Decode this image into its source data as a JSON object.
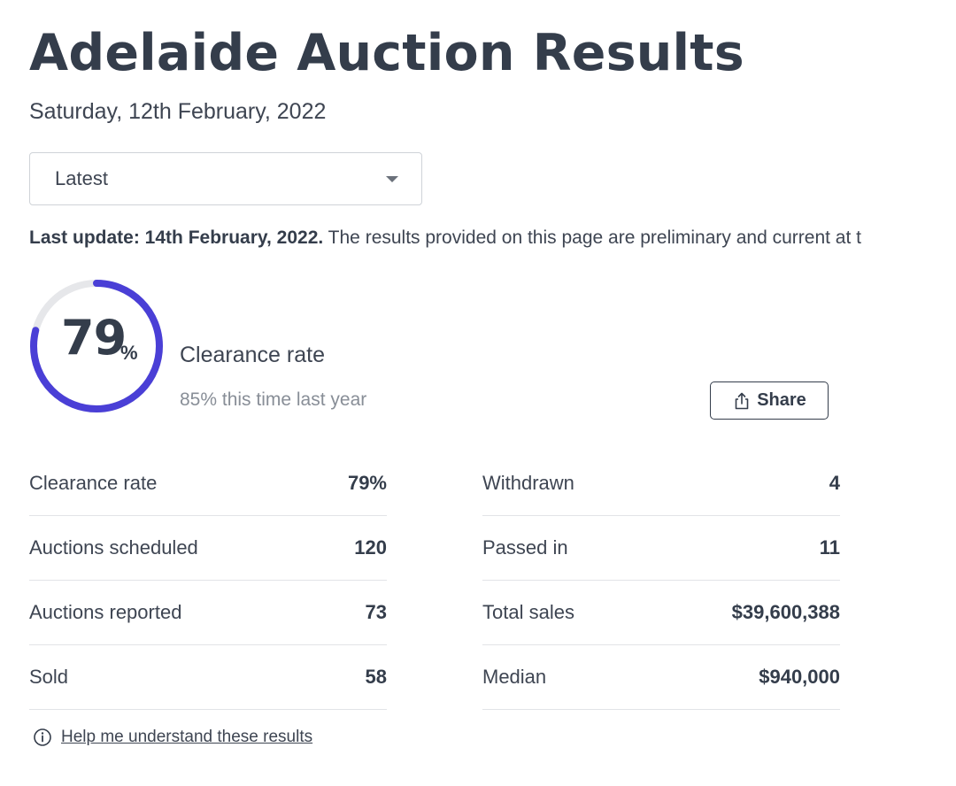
{
  "page": {
    "title": "Adelaide Auction Results",
    "date": "Saturday, 12th February, 2022"
  },
  "filter": {
    "selected": "Latest"
  },
  "update": {
    "label": "Last update: 14th February, 2022.",
    "text": " The results provided on this page are preliminary and current at t"
  },
  "summary": {
    "rate_value": "79",
    "rate_unit": "%",
    "rate_fraction": 0.79,
    "label": "Clearance rate",
    "comparison": "85% this time last year",
    "share_label": "Share"
  },
  "stats_left": [
    {
      "label": "Clearance rate",
      "value": "79%"
    },
    {
      "label": "Auctions scheduled",
      "value": "120"
    },
    {
      "label": "Auctions reported",
      "value": "73"
    },
    {
      "label": "Sold",
      "value": "58"
    }
  ],
  "stats_right": [
    {
      "label": "Withdrawn",
      "value": "4"
    },
    {
      "label": "Passed in",
      "value": "11"
    },
    {
      "label": "Total sales",
      "value": "$39,600,388"
    },
    {
      "label": "Median",
      "value": "$940,000"
    }
  ],
  "help": {
    "link_text": "Help me understand these results"
  },
  "colors": {
    "accent": "#4a3fd6",
    "ring_track": "#e6e7ea",
    "text": "#343d4b"
  },
  "icons": {
    "dropdown": "chevron-down-icon",
    "share": "share-icon",
    "help": "info-icon"
  }
}
